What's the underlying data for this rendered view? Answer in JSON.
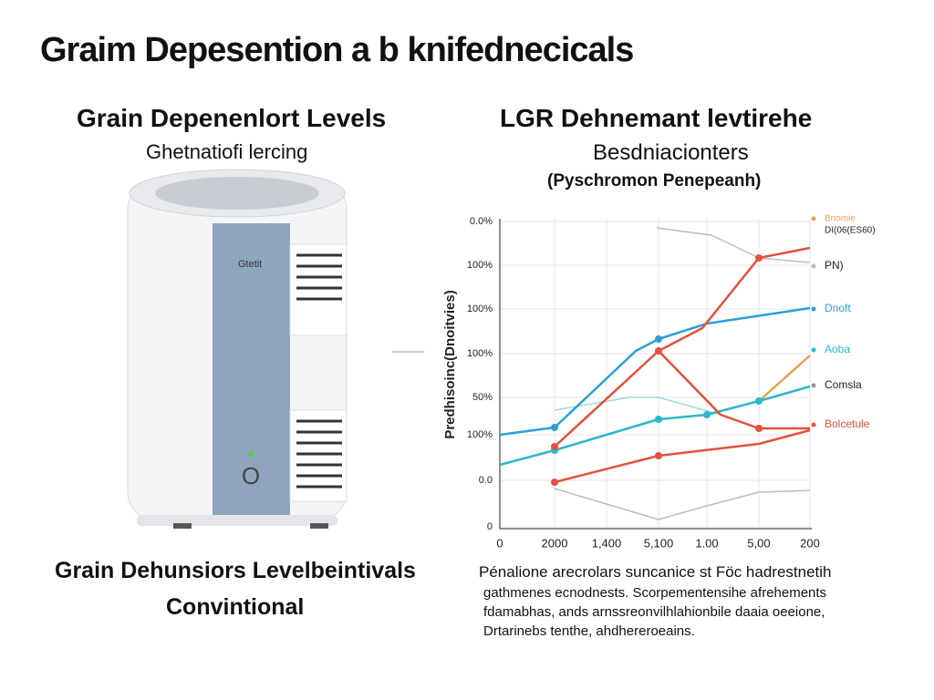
{
  "header": {
    "title": "Graim Depesention a b knifednecicals"
  },
  "left": {
    "heading": "Grain Depenenlort Levels",
    "subheading": "Ghetnatiofi lercing",
    "device_label": "Gtetit",
    "device_button": "O",
    "caption": [
      "Grain Dehunsiors Levelbeintivals",
      "Convintional"
    ]
  },
  "right": {
    "heading": "LGR Dehnemant levtirehe",
    "subheading": "Besdniacionters",
    "note": "(Pyschromon Penepeanh)",
    "chart": {
      "y_axis_label": "Predhisoinc(Dnoitvies)",
      "y_tick_labels": [
        "0.0%",
        "100%",
        "100%",
        "100%",
        "50%",
        "100%",
        "0.0",
        "0"
      ],
      "x_tick_labels": [
        "0",
        "2000",
        "1,400",
        "5,100",
        "1.00",
        "5,00",
        "200"
      ],
      "legend": [
        "Bnomie",
        "DI(06(ES60)",
        "PN)",
        "Dnoft",
        "Aoba",
        "Comsla",
        "Bolcetule"
      ]
    },
    "paragraph": [
      "Pénalione arecrolars suncanice st Föc hadrestnetih",
      "gathmenes ecnodnests. Scorpementensihe afrehements",
      "fdamabhas, ands arnssreonvilhlahionbile daaia oeeione,",
      "Drtarinebs tenthe, ahdhereroeains."
    ]
  }
}
